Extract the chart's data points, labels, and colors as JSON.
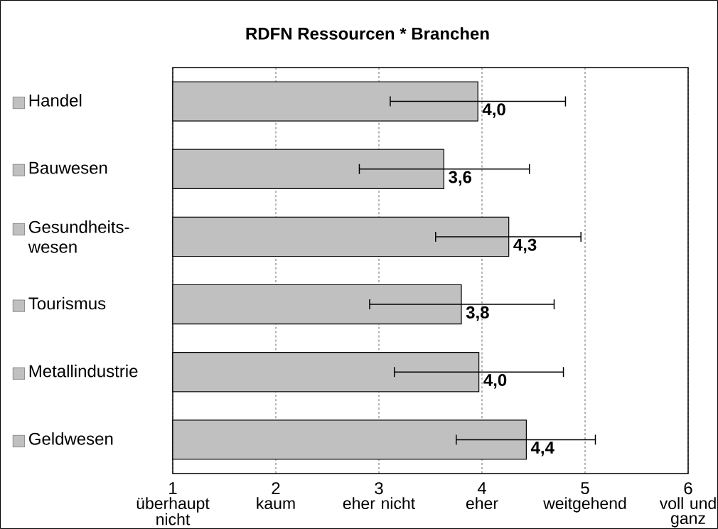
{
  "chart_data": {
    "type": "bar",
    "orientation": "horizontal",
    "title": "RDFN Ressourcen * Branchen",
    "categories": [
      "Handel",
      "Bauwesen",
      "Gesundheits-wesen",
      "Tourismus",
      "Metallindustrie",
      "Geldwesen"
    ],
    "values": [
      3.96,
      3.63,
      4.26,
      3.8,
      3.97,
      4.43
    ],
    "errors": [
      [
        3.11,
        4.81
      ],
      [
        2.81,
        4.46
      ],
      [
        3.55,
        4.96
      ],
      [
        2.91,
        4.7
      ],
      [
        3.15,
        4.79
      ],
      [
        3.75,
        5.1
      ]
    ],
    "value_labels": [
      "4,0",
      "3,6",
      "4,3",
      "3,8",
      "4,0",
      "4,4"
    ],
    "color": "#c0c0c0",
    "xlim": [
      1,
      6
    ],
    "xticks": [
      1,
      2,
      3,
      4,
      5,
      6
    ],
    "grid": "x",
    "annotations": [
      "überhaupt nicht",
      "kaum",
      "eher nicht",
      "eher",
      "weitgehend",
      "voll und ganz"
    ]
  }
}
